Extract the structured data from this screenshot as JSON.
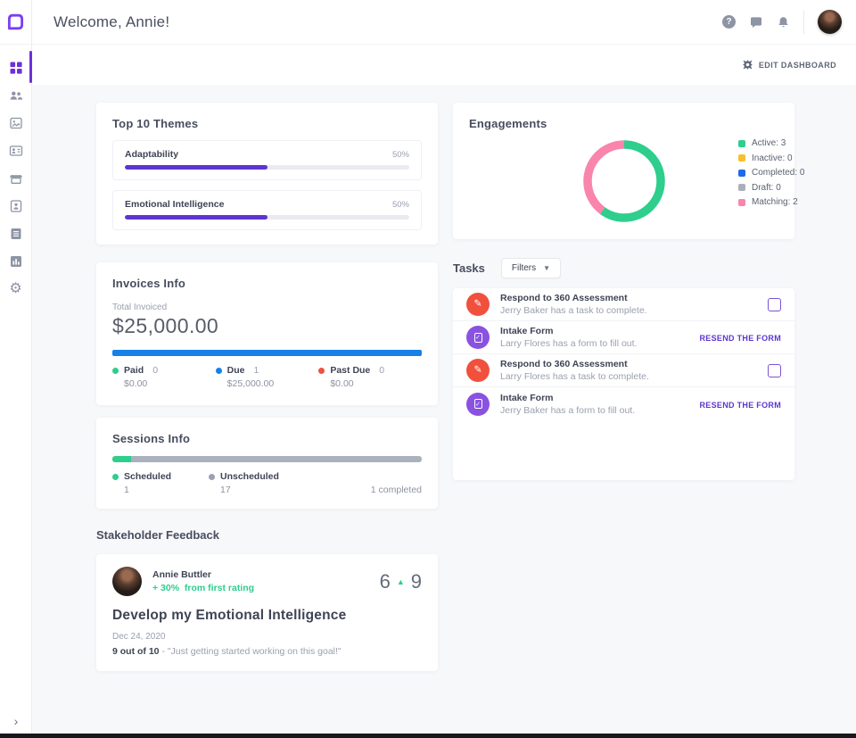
{
  "header": {
    "title": "Welcome, Annie!",
    "icons": {
      "help": "help-icon",
      "messages": "chat-icon",
      "notifications": "bell-icon",
      "avatar": "user-avatar"
    }
  },
  "toolbar": {
    "edit_dashboard_label": "EDIT DASHBOARD"
  },
  "sidebar": {
    "expand_chevron": "›",
    "items": [
      {
        "icon": "dashboard-grid-icon",
        "active": true
      },
      {
        "icon": "people-icon",
        "active": false
      },
      {
        "icon": "media-card-icon",
        "active": false
      },
      {
        "icon": "contact-card-icon",
        "active": false
      },
      {
        "icon": "marketplace-icon",
        "active": false
      },
      {
        "icon": "profile-badge-icon",
        "active": false
      },
      {
        "icon": "forms-icon",
        "active": false
      },
      {
        "icon": "reports-icon",
        "active": false
      },
      {
        "icon": "settings-gear-icon",
        "active": false
      }
    ]
  },
  "themes": {
    "title": "Top 10 Themes",
    "bar_color": "#5d35d0",
    "items": [
      {
        "label": "Adaptability",
        "percent_label": "50%",
        "percent": 50
      },
      {
        "label": "Emotional Intelligence",
        "percent_label": "50%",
        "percent": 50
      }
    ]
  },
  "invoices": {
    "title": "Invoices Info",
    "total_label": "Total Invoiced",
    "total_value": "$25,000.00",
    "bar_color": "#1781e8",
    "bar_percent": 100,
    "legend": [
      {
        "label": "Paid",
        "count": "0",
        "amount": "$0.00",
        "color": "#2ece8d"
      },
      {
        "label": "Due",
        "count": "1",
        "amount": "$25,000.00",
        "color": "#1781e8"
      },
      {
        "label": "Past Due",
        "count": "0",
        "amount": "$0.00",
        "color": "#f0503c"
      }
    ]
  },
  "sessions": {
    "title": "Sessions Info",
    "scheduled_percent": 6,
    "completed_label": "1 completed",
    "legend": [
      {
        "label": "Scheduled",
        "count": "1",
        "color": "#2ece8d"
      },
      {
        "label": "Unscheduled",
        "count": "17",
        "color": "#9aa1b0"
      }
    ]
  },
  "feedback": {
    "section_title": "Stakeholder Feedback",
    "name": "Annie Buttler",
    "delta": "+ 30%",
    "delta_note": "from first rating",
    "score_before": "6",
    "score_after": "9",
    "arrow": "▲",
    "goal": "Develop my Emotional Intelligence",
    "date": "Dec 24, 2020",
    "rating": "9 out of 10",
    "quote": "- \"Just getting started working on this goal!\""
  },
  "engagements": {
    "title": "Engagements",
    "legend": [
      {
        "label": "Active: 3",
        "color": "#2ece8d"
      },
      {
        "label": "Inactive: 0",
        "color": "#f5c02b"
      },
      {
        "label": "Completed: 0",
        "color": "#1f6ae8"
      },
      {
        "label": "Draft: 0",
        "color": "#aab0ba"
      },
      {
        "label": "Matching: 2",
        "color": "#f985ad"
      }
    ]
  },
  "chart_data": {
    "type": "pie",
    "donut": true,
    "title": "Engagements",
    "categories": [
      "Active",
      "Inactive",
      "Completed",
      "Draft",
      "Matching"
    ],
    "values": [
      3,
      0,
      0,
      0,
      2
    ],
    "colors": [
      "#2ece8d",
      "#f5c02b",
      "#1f6ae8",
      "#aab0ba",
      "#f985ad"
    ],
    "legend_position": "right"
  },
  "tasks": {
    "title": "Tasks",
    "filters_label": "Filters",
    "resend_label": "RESEND THE FORM",
    "items": [
      {
        "icon": "assessment-pencil-icon",
        "icon_color": "#f0503c",
        "title": "Respond to 360 Assessment",
        "subtitle": "Jerry Baker has a task to complete.",
        "action": "checkbox"
      },
      {
        "icon": "intake-form-icon",
        "icon_color": "#8952e0",
        "title": "Intake Form",
        "subtitle": "Larry Flores has a form to fill out.",
        "action": "resend"
      },
      {
        "icon": "assessment-pencil-icon",
        "icon_color": "#f0503c",
        "title": "Respond to 360 Assessment",
        "subtitle": "Larry Flores has a task to complete.",
        "action": "checkbox"
      },
      {
        "icon": "intake-form-icon",
        "icon_color": "#8952e0",
        "title": "Intake Form",
        "subtitle": "Jerry Baker has a form to fill out.",
        "action": "resend"
      }
    ]
  }
}
